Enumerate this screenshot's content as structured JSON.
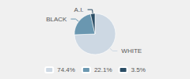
{
  "chart_data": {
    "type": "pie",
    "categories": [
      "WHITE",
      "BLACK",
      "A.I."
    ],
    "values": [
      74.4,
      22.1,
      3.5
    ],
    "value_labels": [
      "74.4%",
      "22.1%",
      "3.5%"
    ],
    "colors": [
      "#cdd8e3",
      "#6a97b0",
      "#2b4d65"
    ],
    "legend": "bottom"
  }
}
